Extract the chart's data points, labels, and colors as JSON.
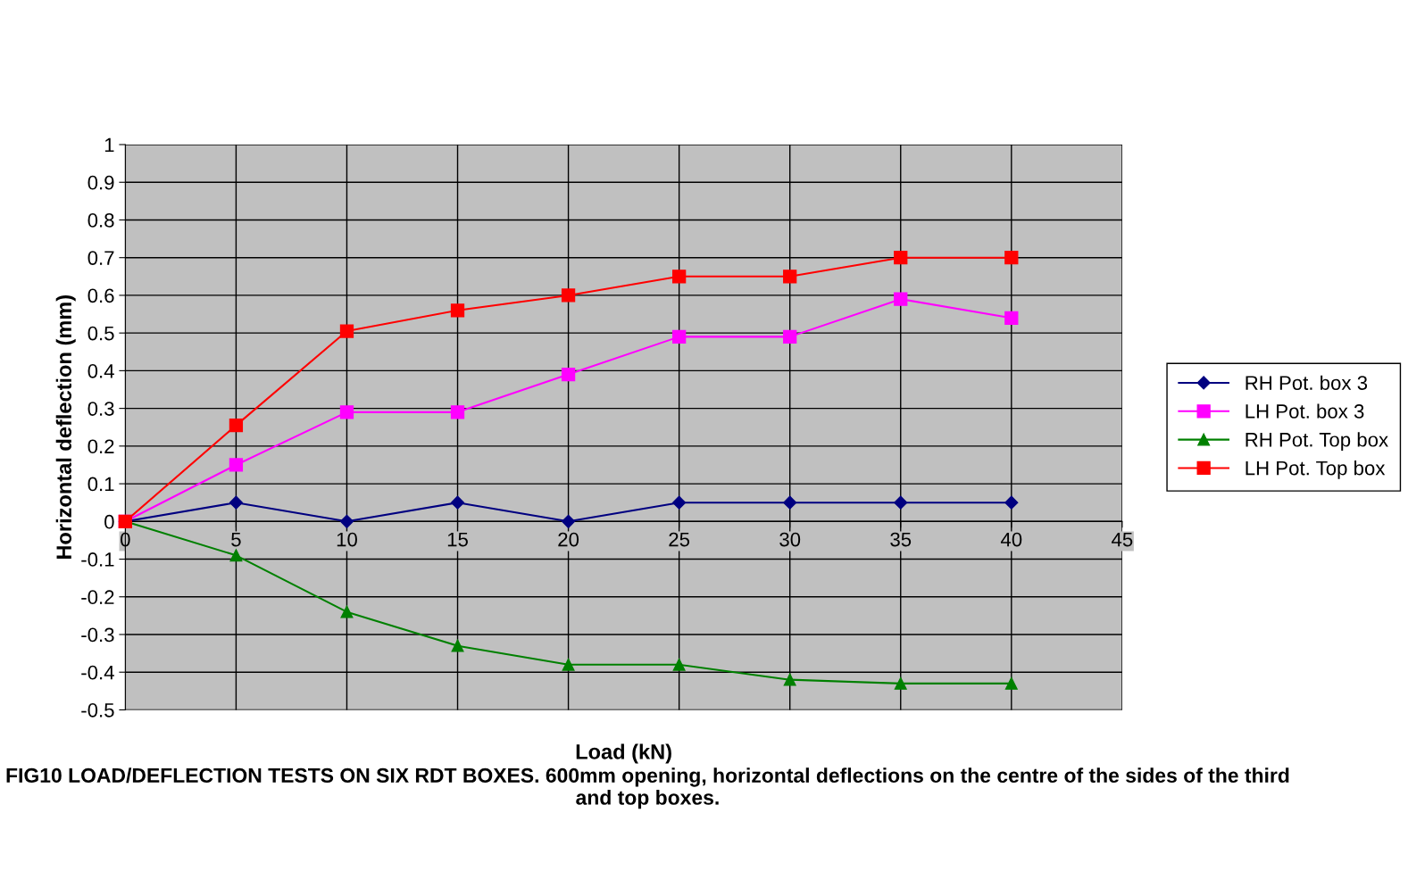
{
  "chart_data": {
    "type": "line",
    "xlabel": "Load (kN)",
    "ylabel": "Horizontal deflection (mm)",
    "x": [
      0,
      5,
      10,
      15,
      20,
      25,
      30,
      35,
      40
    ],
    "series": [
      {
        "name": "RH Pot. box 3",
        "color": "#000080",
        "marker": "diamond",
        "values": [
          0,
          0.05,
          0,
          0.05,
          0,
          0.05,
          0.05,
          0.05,
          0.05
        ]
      },
      {
        "name": "LH Pot. box 3",
        "color": "#ff00ff",
        "marker": "square",
        "values": [
          0,
          0.15,
          0.29,
          0.29,
          0.39,
          0.49,
          0.49,
          0.59,
          0.54
        ]
      },
      {
        "name": "RH Pot. Top box",
        "color": "#008000",
        "marker": "triangle",
        "values": [
          0,
          -0.09,
          -0.24,
          -0.33,
          -0.38,
          -0.38,
          -0.42,
          -0.43,
          -0.43
        ]
      },
      {
        "name": "LH Pot. Top box",
        "color": "#ff0000",
        "marker": "square",
        "values": [
          0,
          0.255,
          0.505,
          0.56,
          0.6,
          0.65,
          0.65,
          0.7,
          0.7
        ]
      }
    ],
    "xlim": [
      0,
      45
    ],
    "xticks": [
      0,
      5,
      10,
      15,
      20,
      25,
      30,
      35,
      40,
      45
    ],
    "ylim": [
      -0.5,
      1
    ],
    "yticks": [
      -0.5,
      -0.4,
      -0.3,
      -0.2,
      -0.1,
      0,
      0.1,
      0.2,
      0.3,
      0.4,
      0.5,
      0.6,
      0.7,
      0.8,
      0.9,
      1
    ],
    "grid": true,
    "legend": "right",
    "line_style": "solid",
    "annotations": [
      "FIG10 LOAD/DEFLECTION TESTS ON SIX RDT BOXES. 600mm opening, horizontal deflections on the centre of the sides of the third and top boxes."
    ]
  }
}
